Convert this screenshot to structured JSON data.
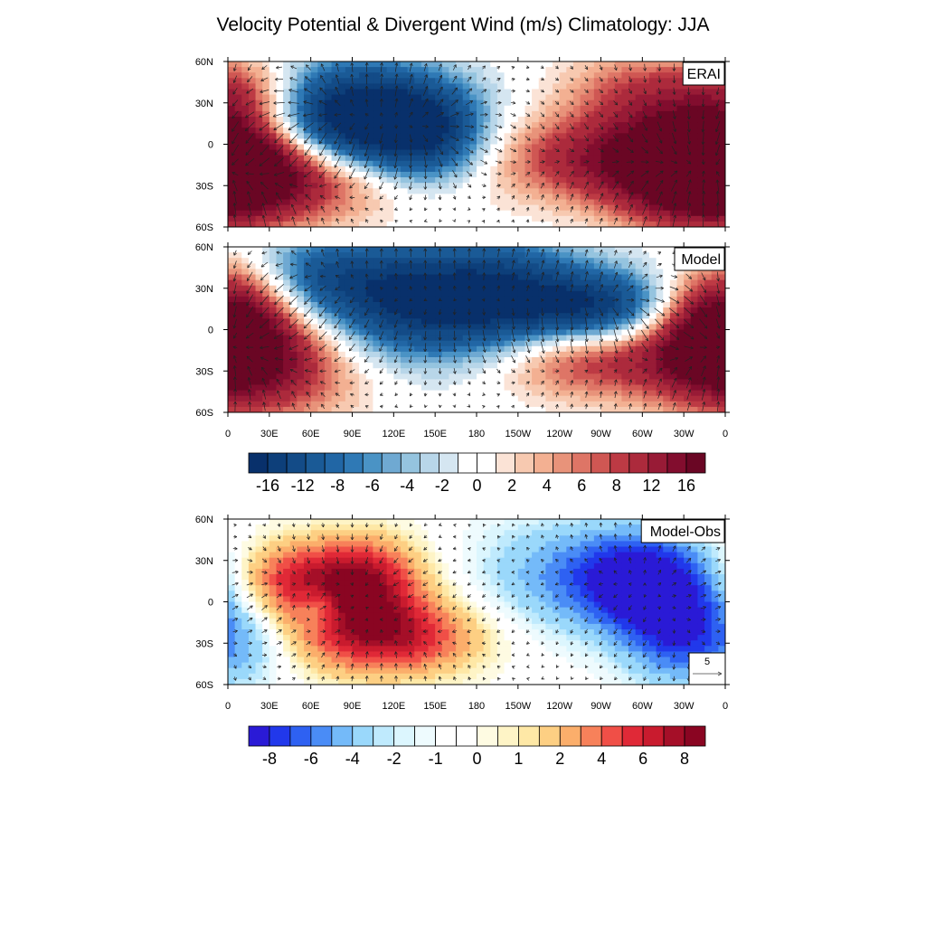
{
  "figure": {
    "title": "Velocity Potential & Divergent Wind (m/s) Climatology: JJA"
  },
  "chart_data": [
    {
      "type": "heatmap",
      "panel_label": "ERAI",
      "field": "velocity potential with divergent wind vectors",
      "x_ticks": [
        "0",
        "30E",
        "60E",
        "90E",
        "120E",
        "150E",
        "180",
        "150W",
        "120W",
        "90W",
        "60W",
        "30W",
        "0"
      ],
      "y_ticks": [
        "60N",
        "30N",
        "0",
        "30S",
        "60S"
      ],
      "xlim": [
        0,
        360
      ],
      "ylim": [
        -60,
        60
      ],
      "blobs": [
        {
          "lon": 90,
          "lat": 18,
          "value": -19,
          "wlon": 50,
          "wlat": 28
        },
        {
          "lon": 145,
          "lat": 5,
          "value": -9,
          "wlon": 30,
          "wlat": 25
        },
        {
          "lon": 50,
          "lat": -25,
          "value": 9,
          "wlon": 60,
          "wlat": 22
        },
        {
          "lon": 10,
          "lat": -15,
          "value": 11,
          "wlon": 40,
          "wlat": 25
        },
        {
          "lon": 335,
          "lat": -15,
          "value": 17,
          "wlon": 40,
          "wlat": 30
        },
        {
          "lon": 260,
          "lat": -10,
          "value": 9,
          "wlon": 50,
          "wlat": 22
        },
        {
          "lon": 15,
          "lat": 35,
          "value": 8,
          "wlon": 30,
          "wlat": 20
        },
        {
          "lon": 300,
          "lat": 40,
          "value": 6,
          "wlon": 40,
          "wlat": 20
        }
      ]
    },
    {
      "type": "heatmap",
      "panel_label": "Model",
      "field": "velocity potential with divergent wind vectors",
      "x_ticks": [
        "0",
        "30E",
        "60E",
        "90E",
        "120E",
        "150E",
        "180",
        "150W",
        "120W",
        "90W",
        "60W",
        "30W",
        "0"
      ],
      "y_ticks": [
        "60N",
        "30N",
        "0",
        "30S",
        "60S"
      ],
      "xlim": [
        0,
        360
      ],
      "ylim": [
        -60,
        60
      ],
      "blobs": [
        {
          "lon": 130,
          "lat": 20,
          "value": -14,
          "wlon": 60,
          "wlat": 30
        },
        {
          "lon": 270,
          "lat": 15,
          "value": -13,
          "wlon": 40,
          "wlat": 20
        },
        {
          "lon": 200,
          "lat": 25,
          "value": -8,
          "wlon": 40,
          "wlat": 30
        },
        {
          "lon": 60,
          "lat": 40,
          "value": -6,
          "wlon": 40,
          "wlat": 20
        },
        {
          "lon": 20,
          "lat": -20,
          "value": 14,
          "wlon": 50,
          "wlat": 30
        },
        {
          "lon": 260,
          "lat": -20,
          "value": 9,
          "wlon": 50,
          "wlat": 20
        },
        {
          "lon": 355,
          "lat": -5,
          "value": 13,
          "wlon": 30,
          "wlat": 25
        },
        {
          "lon": 10,
          "lat": 30,
          "value": 6,
          "wlon": 30,
          "wlat": 20
        }
      ]
    },
    {
      "type": "heatmap",
      "panel_label": "Model-Obs",
      "field": "velocity potential difference with divergent wind vectors",
      "x_ticks": [
        "0",
        "30E",
        "60E",
        "90E",
        "120E",
        "150E",
        "180",
        "150W",
        "120W",
        "90W",
        "60W",
        "30W",
        "0"
      ],
      "y_ticks": [
        "60N",
        "30N",
        "0",
        "30S",
        "60S"
      ],
      "xlim": [
        0,
        360
      ],
      "ylim": [
        -60,
        60
      ],
      "reference_vector": "5",
      "blobs": [
        {
          "lon": 300,
          "lat": 15,
          "value": -9,
          "wlon": 35,
          "wlat": 25
        },
        {
          "lon": 330,
          "lat": -25,
          "value": -6,
          "wlon": 30,
          "wlat": 25
        },
        {
          "lon": 230,
          "lat": 20,
          "value": -3,
          "wlon": 40,
          "wlat": 30
        },
        {
          "lon": 20,
          "lat": -30,
          "value": -2,
          "wlon": 20,
          "wlat": 25
        },
        {
          "lon": 95,
          "lat": 15,
          "value": 9,
          "wlon": 30,
          "wlat": 22
        },
        {
          "lon": 115,
          "lat": -25,
          "value": 8,
          "wlon": 45,
          "wlat": 20
        },
        {
          "lon": 40,
          "lat": 15,
          "value": 5,
          "wlon": 25,
          "wlat": 20
        },
        {
          "lon": 65,
          "lat": -5,
          "value": -3,
          "wlon": 10,
          "wlat": 10
        }
      ]
    }
  ],
  "colorbars": [
    {
      "labels": [
        "-16",
        "-12",
        "-8",
        "-6",
        "-4",
        "-2",
        "0",
        "2",
        "4",
        "6",
        "8",
        "12",
        "16"
      ],
      "levels": [
        -18,
        -16,
        -14,
        -12,
        -10,
        -8,
        -7,
        -6,
        -5,
        -4,
        -3,
        -2,
        -1,
        0,
        1,
        2,
        3,
        4,
        5,
        6,
        7,
        8,
        10,
        12,
        14,
        16,
        18
      ],
      "colors": [
        "#08306b",
        "#0d3f7a",
        "#134b87",
        "#1a5a96",
        "#2166a5",
        "#2f79b5",
        "#4a93c5",
        "#6fa9d2",
        "#95c4df",
        "#b8d6e9",
        "#d5e6f1",
        "#ffffff",
        "#ffffff",
        "#fbe3d6",
        "#f7c9b0",
        "#f3b092",
        "#e8937a",
        "#de7566",
        "#cf5753",
        "#bd3a44",
        "#ac2a3c",
        "#981b36",
        "#820d2e",
        "#6a0624"
      ]
    },
    {
      "labels": [
        "-8",
        "-6",
        "-4",
        "-2",
        "-1",
        "0",
        "1",
        "2",
        "4",
        "6",
        "8"
      ],
      "levels": [
        -9,
        -8,
        -7,
        -6,
        -5,
        -4,
        -3,
        -2,
        -1.5,
        -1,
        -0.5,
        0,
        0.5,
        1,
        1.5,
        2,
        3,
        4,
        5,
        6,
        7,
        8,
        9
      ],
      "colors": [
        "#2a1ad6",
        "#2138eb",
        "#2e61f2",
        "#4a8cf6",
        "#74baf9",
        "#9ad8fb",
        "#bfeafd",
        "#dcf6fe",
        "#eefbfe",
        "#ffffff",
        "#ffffff",
        "#fefbe2",
        "#fef4c6",
        "#fee8a6",
        "#fdcf83",
        "#fbae6b",
        "#f7815a",
        "#f04f47",
        "#e02937",
        "#c91b2e",
        "#a50f28",
        "#8a0522"
      ]
    }
  ]
}
